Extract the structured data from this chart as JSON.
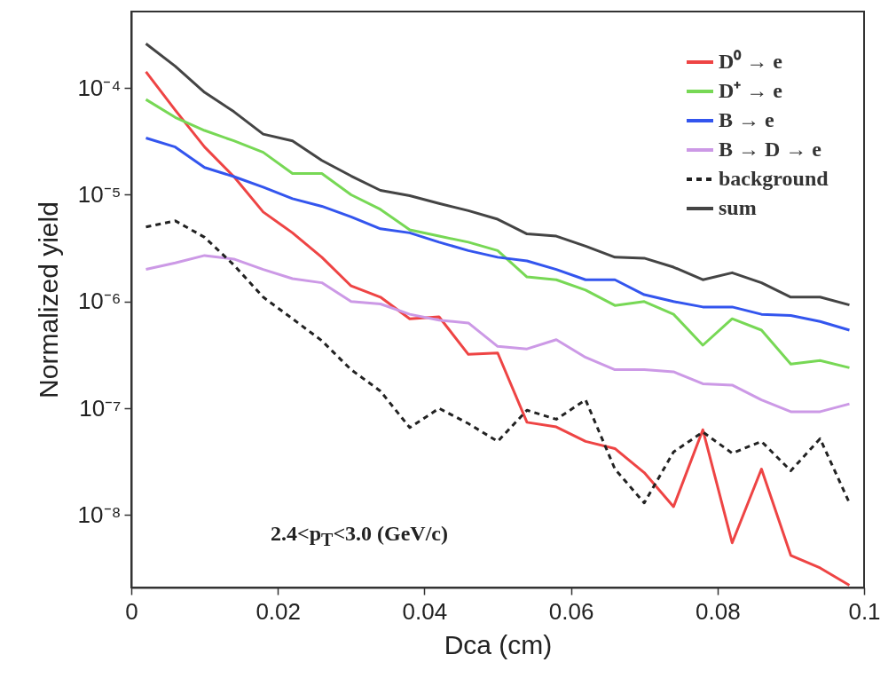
{
  "chart_data": {
    "type": "line",
    "xlabel": "Dca (cm)",
    "ylabel": "Normalized yield",
    "log": "y",
    "grid": false,
    "legend": "top right",
    "marker": "none",
    "x": [
      0.002,
      0.006,
      0.01,
      0.014,
      0.018,
      0.022,
      0.026,
      0.03,
      0.034,
      0.038,
      0.042,
      0.046,
      0.05,
      0.054,
      0.058,
      0.062,
      0.066,
      0.07,
      0.074,
      0.078,
      0.082,
      0.086,
      0.09,
      0.094,
      0.098
    ],
    "xlim": [
      0,
      0.1
    ],
    "xticks": [
      0,
      0.02,
      0.04,
      0.06,
      0.08,
      0.1
    ],
    "ylim": [
      2.1e-09,
      0.00052
    ],
    "yticks": [
      {
        "value": 1e-08,
        "label": "10⁻⁸"
      },
      {
        "value": 1e-07,
        "label": "10⁻⁷"
      },
      {
        "value": 1e-06,
        "label": "10⁻⁶"
      },
      {
        "value": 1e-05,
        "label": "10⁻⁵"
      },
      {
        "value": 0.0001,
        "label": "10⁻⁴"
      }
    ],
    "series": [
      {
        "name": "D⁰ → e",
        "color": "#ee4444",
        "line_style": "solid",
        "values": [
          0.000142,
          6.2e-05,
          2.8e-05,
          1.48e-05,
          6.9e-06,
          4.4e-06,
          2.6e-06,
          1.4e-06,
          1.1e-06,
          6.9e-07,
          7.2e-07,
          3.2e-07,
          3.3e-07,
          7.4e-08,
          6.7e-08,
          4.9e-08,
          4.2e-08,
          2.5e-08,
          1.2e-08,
          6.3e-08,
          5.5e-09,
          2.7e-08,
          4.2e-09,
          3.2e-09,
          2.2e-09
        ]
      },
      {
        "name": "D⁺ → e",
        "color": "#77d855",
        "line_style": "solid",
        "values": [
          7.8e-05,
          5.3e-05,
          4e-05,
          3.2e-05,
          2.5e-05,
          1.58e-05,
          1.58e-05,
          1e-05,
          7.3e-06,
          4.7e-06,
          4.1e-06,
          3.6e-06,
          3e-06,
          1.7e-06,
          1.6e-06,
          1.28e-06,
          9.2e-07,
          1e-06,
          7.6e-07,
          3.9e-07,
          6.9e-07,
          5.4e-07,
          2.6e-07,
          2.8e-07,
          2.4e-07
        ]
      },
      {
        "name": "B → e",
        "color": "#3355ee",
        "line_style": "solid",
        "values": [
          3.4e-05,
          2.8e-05,
          1.8e-05,
          1.48e-05,
          1.18e-05,
          9.2e-06,
          7.8e-06,
          6.2e-06,
          4.8e-06,
          4.4e-06,
          3.6e-06,
          3e-06,
          2.6e-06,
          2.4e-06,
          2e-06,
          1.6e-06,
          1.6e-06,
          1.16e-06,
          1e-06,
          8.9e-07,
          8.9e-07,
          7.6e-07,
          7.4e-07,
          6.5e-07,
          5.4e-07
        ]
      },
      {
        "name": "B → D → e",
        "color": "#cc99e6",
        "line_style": "solid",
        "values": [
          2e-06,
          2.3e-06,
          2.7e-06,
          2.5e-06,
          2e-06,
          1.64e-06,
          1.5e-06,
          1e-06,
          9.5e-07,
          7.6e-07,
          6.7e-07,
          6.3e-07,
          3.8e-07,
          3.6e-07,
          4.4e-07,
          3e-07,
          2.3e-07,
          2.3e-07,
          2.2e-07,
          1.7e-07,
          1.65e-07,
          1.2e-07,
          9.3e-08,
          9.3e-08,
          1.1e-07
        ]
      },
      {
        "name": "background",
        "color": "#222222",
        "line_style": "dashed",
        "values": [
          5e-06,
          5.7e-06,
          4e-06,
          2.2e-06,
          1.1e-06,
          6.9e-07,
          4.3e-07,
          2.3e-07,
          1.45e-07,
          6.6e-08,
          1e-07,
          7.2e-08,
          4.9e-08,
          9.6e-08,
          7.9e-08,
          1.2e-07,
          2.7e-08,
          1.3e-08,
          3.9e-08,
          6e-08,
          3.8e-08,
          4.9e-08,
          2.6e-08,
          5.2e-08,
          1.3e-08
        ]
      },
      {
        "name": "sum",
        "color": "#444444",
        "line_style": "solid",
        "values": [
          0.00026,
          0.00016,
          9.1e-05,
          6e-05,
          3.7e-05,
          3.2e-05,
          2.1e-05,
          1.5e-05,
          1.1e-05,
          9.8e-06,
          8.3e-06,
          7.1e-06,
          5.9e-06,
          4.3e-06,
          4.1e-06,
          3.3e-06,
          2.6e-06,
          2.55e-06,
          2.1e-06,
          1.6e-06,
          1.86e-06,
          1.5e-06,
          1.1e-06,
          1.1e-06,
          9.3e-07
        ]
      }
    ],
    "annotations": [
      "2.4<p$_{T}$<3.0 (GeV/c)"
    ]
  }
}
